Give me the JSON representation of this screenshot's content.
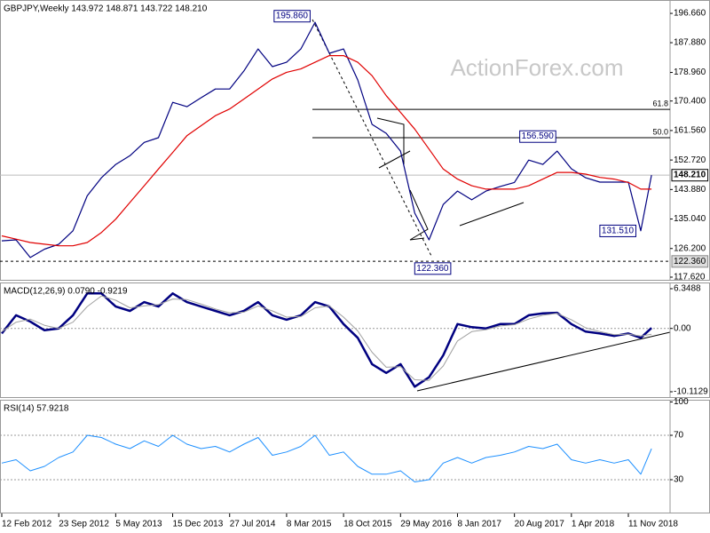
{
  "chart_data": [
    {
      "type": "line",
      "title": "GBPJPY,Weekly  143.972 148.871 143.722 148.210",
      "watermark": "ActionForex.com",
      "x": [
        "2012-02-12",
        "2012-04-08",
        "2012-06-03",
        "2012-07-29",
        "2012-09-23",
        "2012-11-18",
        "2013-01-13",
        "2013-03-10",
        "2013-05-05",
        "2013-06-30",
        "2013-08-25",
        "2013-10-20",
        "2013-12-15",
        "2014-02-09",
        "2014-04-06",
        "2014-06-01",
        "2014-07-27",
        "2014-09-21",
        "2014-11-16",
        "2015-01-11",
        "2015-03-08",
        "2015-05-03",
        "2015-06-28",
        "2015-08-23",
        "2015-10-18",
        "2015-12-13",
        "2016-02-07",
        "2016-04-03",
        "2016-05-29",
        "2016-07-24",
        "2016-09-18",
        "2016-11-13",
        "2017-01-08",
        "2017-03-05",
        "2017-04-30",
        "2017-06-25",
        "2017-08-20",
        "2017-10-15",
        "2017-12-10",
        "2018-02-04",
        "2018-04-01",
        "2018-05-27",
        "2018-07-22",
        "2018-09-16",
        "2018-11-11",
        "2018-12-30",
        "2019-02-10"
      ],
      "series": [
        {
          "color": "#000080",
          "line_width": 1.2,
          "values": [
            128.5,
            128.8,
            123.5,
            126.0,
            127.5,
            131.5,
            142.0,
            147.4,
            151.4,
            154.0,
            158.0,
            159.4,
            170.0,
            168.7,
            171.4,
            174.0,
            174.0,
            179.4,
            186.0,
            180.7,
            182.0,
            186.0,
            194.0,
            184.7,
            186.0,
            176.7,
            163.4,
            160.7,
            155.4,
            136.8,
            128.8,
            139.4,
            143.4,
            140.8,
            143.4,
            144.8,
            146.0,
            152.7,
            151.4,
            155.4,
            150.1,
            147.4,
            146.1,
            146.1,
            146.1,
            131.5,
            148.21
          ]
        },
        {
          "color": "#e00000",
          "line_width": 1.2,
          "values": [
            130,
            129,
            128,
            127.5,
            127,
            127,
            128,
            131,
            135,
            140,
            145,
            150,
            155,
            160,
            163,
            166,
            168,
            171,
            174,
            177,
            179,
            180,
            182,
            184,
            184,
            182,
            178,
            172,
            167,
            162,
            156,
            150,
            147,
            145,
            144,
            144,
            144,
            145,
            147,
            149,
            149,
            148.5,
            147.5,
            147,
            146,
            144,
            144
          ]
        }
      ],
      "xlim": [
        "2012-02-05",
        "2019-04-24"
      ],
      "ylim": [
        116.55,
        200.67
      ],
      "yticks": [
        {
          "value": 196.66,
          "label": "196.660"
        },
        {
          "value": 187.88,
          "label": "187.880"
        },
        {
          "value": 178.96,
          "label": "178.960"
        },
        {
          "value": 170.4,
          "label": "170.400"
        },
        {
          "value": 161.56,
          "label": "161.560"
        },
        {
          "value": 152.72,
          "label": "152.720"
        },
        {
          "value": 143.88,
          "label": "143.880"
        },
        {
          "value": 135.04,
          "label": "135.040"
        },
        {
          "value": 126.2,
          "label": "126.200"
        },
        {
          "value": 117.62,
          "label": "117.620"
        }
      ],
      "levels": [
        {
          "value": 167.9,
          "label": "61.8"
        },
        {
          "value": 159.4,
          "label": "50.0"
        }
      ],
      "price_line": {
        "value": 148.21,
        "label": "148.210"
      },
      "support_line": {
        "value": 122.36,
        "label": "122.360"
      },
      "annotations": [
        {
          "x": "2015-06-21",
          "value": 195.86,
          "label": "195.860"
        },
        {
          "x": "2017-11-19",
          "value": 156.59,
          "label": "156.590"
        },
        {
          "x": "2018-12-30",
          "value": 131.51,
          "label": "131.510"
        },
        {
          "x": "2016-10-02",
          "value": 122.36,
          "label": "122.360"
        }
      ]
    },
    {
      "type": "line",
      "title": "MACD(12,26,9) 0.0790 -0.9219",
      "x": [
        "2012-02-12",
        "2012-04-08",
        "2012-06-03",
        "2012-07-29",
        "2012-09-23",
        "2012-11-18",
        "2013-01-13",
        "2013-03-10",
        "2013-05-05",
        "2013-06-30",
        "2013-08-25",
        "2013-10-20",
        "2013-12-15",
        "2014-02-09",
        "2014-04-06",
        "2014-06-01",
        "2014-07-27",
        "2014-09-21",
        "2014-11-16",
        "2015-01-11",
        "2015-03-08",
        "2015-05-03",
        "2015-06-28",
        "2015-08-23",
        "2015-10-18",
        "2015-12-13",
        "2016-02-07",
        "2016-04-03",
        "2016-05-29",
        "2016-07-24",
        "2016-09-18",
        "2016-11-13",
        "2017-01-08",
        "2017-03-05",
        "2017-04-30",
        "2017-06-25",
        "2017-08-20",
        "2017-10-15",
        "2017-12-10",
        "2018-02-04",
        "2018-04-01",
        "2018-05-27",
        "2018-07-22",
        "2018-09-16",
        "2018-11-11",
        "2018-12-30",
        "2019-02-10"
      ],
      "series": [
        {
          "color": "#000080",
          "line_width": 2.5,
          "values": [
            -0.8,
            2.1,
            1.1,
            -0.3,
            0,
            2.1,
            5.6,
            5.6,
            3.5,
            2.8,
            4.2,
            3.5,
            5.6,
            4.2,
            3.5,
            2.8,
            2.1,
            2.8,
            4.2,
            2.1,
            1.4,
            2.1,
            4.2,
            3.5,
            0.7,
            -1.5,
            -5.7,
            -7.1,
            -5.7,
            -9.3,
            -7.8,
            -4.3,
            0.7,
            0.2,
            0,
            0.7,
            0.7,
            2.1,
            2.4,
            2.5,
            0.7,
            -0.5,
            -0.8,
            -1.2,
            -0.8,
            -1.5,
            0.079
          ]
        },
        {
          "color": "#a0a0a0",
          "line_width": 1,
          "values": [
            -0.5,
            1.0,
            1.5,
            0.5,
            0,
            1.0,
            3.5,
            5.2,
            4.5,
            3.3,
            3.6,
            3.8,
            4.7,
            4.6,
            3.9,
            3.1,
            2.5,
            2.6,
            3.6,
            2.8,
            1.8,
            1.9,
            3.3,
            3.6,
            1.8,
            -0.4,
            -3.8,
            -6.2,
            -6.1,
            -8.2,
            -8.3,
            -6.0,
            -2.0,
            -0.5,
            -0.2,
            0.4,
            0.6,
            1.5,
            2.1,
            2.4,
            1.4,
            0.1,
            -0.5,
            -1.0,
            -0.9,
            -1.2,
            -0.9219
          ]
        }
      ],
      "xlim": [
        "2012-02-05",
        "2019-04-24"
      ],
      "ylim": [
        -11.106,
        7.34
      ],
      "yticks": [
        6.3488,
        {
          "value": 0,
          "label": "0.00"
        },
        -10.1129
      ],
      "reference_lines": [
        0
      ]
    },
    {
      "type": "line",
      "title": "RSI(14) 57.9218",
      "x": [
        "2012-02-12",
        "2012-04-08",
        "2012-06-03",
        "2012-07-29",
        "2012-09-23",
        "2012-11-18",
        "2013-01-13",
        "2013-03-10",
        "2013-05-05",
        "2013-06-30",
        "2013-08-25",
        "2013-10-20",
        "2013-12-15",
        "2014-02-09",
        "2014-04-06",
        "2014-06-01",
        "2014-07-27",
        "2014-09-21",
        "2014-11-16",
        "2015-01-11",
        "2015-03-08",
        "2015-05-03",
        "2015-06-28",
        "2015-08-23",
        "2015-10-18",
        "2015-12-13",
        "2016-02-07",
        "2016-04-03",
        "2016-05-29",
        "2016-07-24",
        "2016-09-18",
        "2016-11-13",
        "2017-01-08",
        "2017-03-05",
        "2017-04-30",
        "2017-06-25",
        "2017-08-20",
        "2017-10-15",
        "2017-12-10",
        "2018-02-04",
        "2018-04-01",
        "2018-05-27",
        "2018-07-22",
        "2018-09-16",
        "2018-11-11",
        "2018-12-30",
        "2019-02-10"
      ],
      "series": [
        {
          "color": "#1e90ff",
          "line_width": 1,
          "values": [
            45,
            48,
            38,
            42,
            50,
            55,
            70,
            68,
            62,
            58,
            65,
            60,
            70,
            62,
            58,
            60,
            55,
            62,
            68,
            52,
            55,
            60,
            70,
            52,
            55,
            42,
            35,
            35,
            38,
            28,
            30,
            45,
            50,
            45,
            50,
            52,
            55,
            60,
            58,
            62,
            48,
            45,
            48,
            45,
            48,
            35,
            57.9218
          ]
        }
      ],
      "xlim": [
        "2012-02-05",
        "2019-04-24"
      ],
      "ylim": [
        -0.4,
        102
      ],
      "yticks": [
        100,
        70,
        30
      ],
      "reference_lines": [
        70,
        30
      ],
      "xticks": [
        {
          "value": "2012-02-12",
          "label": "12 Feb 2012"
        },
        {
          "value": "2012-09-23",
          "label": "23 Sep 2012"
        },
        {
          "value": "2013-05-05",
          "label": "5 May 2013"
        },
        {
          "value": "2013-12-15",
          "label": "15 Dec 2013"
        },
        {
          "value": "2014-07-27",
          "label": "27 Jul 2014"
        },
        {
          "value": "2015-03-08",
          "label": "8 Mar 2015"
        },
        {
          "value": "2015-10-18",
          "label": "18 Oct 2015"
        },
        {
          "value": "2016-05-29",
          "label": "29 May 2016"
        },
        {
          "value": "2017-01-08",
          "label": "8 Jan 2017"
        },
        {
          "value": "2017-08-20",
          "label": "20 Aug 2017"
        },
        {
          "value": "2018-04-01",
          "label": "1 Apr 2018"
        },
        {
          "value": "2018-11-11",
          "label": "11 Nov 2018"
        }
      ]
    }
  ]
}
